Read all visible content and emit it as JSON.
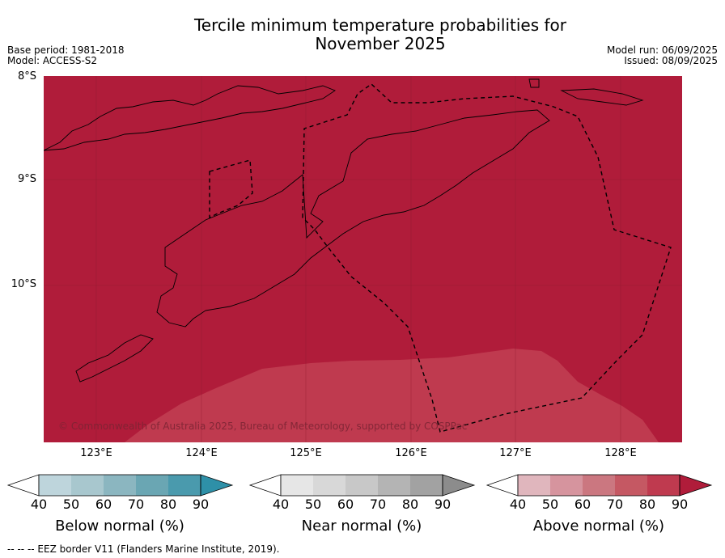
{
  "header": {
    "title_line1": "Tercile minimum temperature probabilities for",
    "title_line2": "November 2025",
    "base_period": "Base period: 1981-2018",
    "model": "Model: ACCESS-S2",
    "model_run": "Model run: 06/09/2025",
    "issued": "Issued: 08/09/2025"
  },
  "map": {
    "lat_labels": [
      "8°S",
      "9°S",
      "10°S"
    ],
    "lon_labels": [
      "123°E",
      "124°E",
      "125°E",
      "126°E",
      "127°E",
      "128°E"
    ],
    "credit": "© Commonwealth of Australia 2025, Bureau of Meteorology, supported by COSPPac",
    "colors": {
      "above_90": "#b01c3a",
      "above_80": "#bf3a4f",
      "eez_line": "#000000",
      "coast": "#000000"
    }
  },
  "legend": {
    "below": {
      "label": "Below normal (%)",
      "ticks": [
        "40",
        "50",
        "60",
        "70",
        "80",
        "90"
      ],
      "colors": [
        "#bed5dc",
        "#a8c7ce",
        "#8bb6c0",
        "#6aa6b3",
        "#4a9aad",
        "#2e90a8"
      ]
    },
    "near": {
      "label": "Near normal (%)",
      "ticks": [
        "40",
        "50",
        "60",
        "70",
        "80",
        "90"
      ],
      "colors": [
        "#e6e6e6",
        "#d8d8d8",
        "#c8c8c8",
        "#b4b4b4",
        "#a2a2a2",
        "#8c8c8c"
      ]
    },
    "above": {
      "label": "Above normal (%)",
      "ticks": [
        "40",
        "50",
        "60",
        "70",
        "80",
        "90"
      ],
      "colors": [
        "#e0b6bd",
        "#d6949e",
        "#cb7780",
        "#c55863",
        "#bf3a4f",
        "#b01c3a"
      ]
    }
  },
  "footer": {
    "eez_note": "--  --  -- EEZ border V11 (Flanders Marine Institute, 2019)."
  }
}
